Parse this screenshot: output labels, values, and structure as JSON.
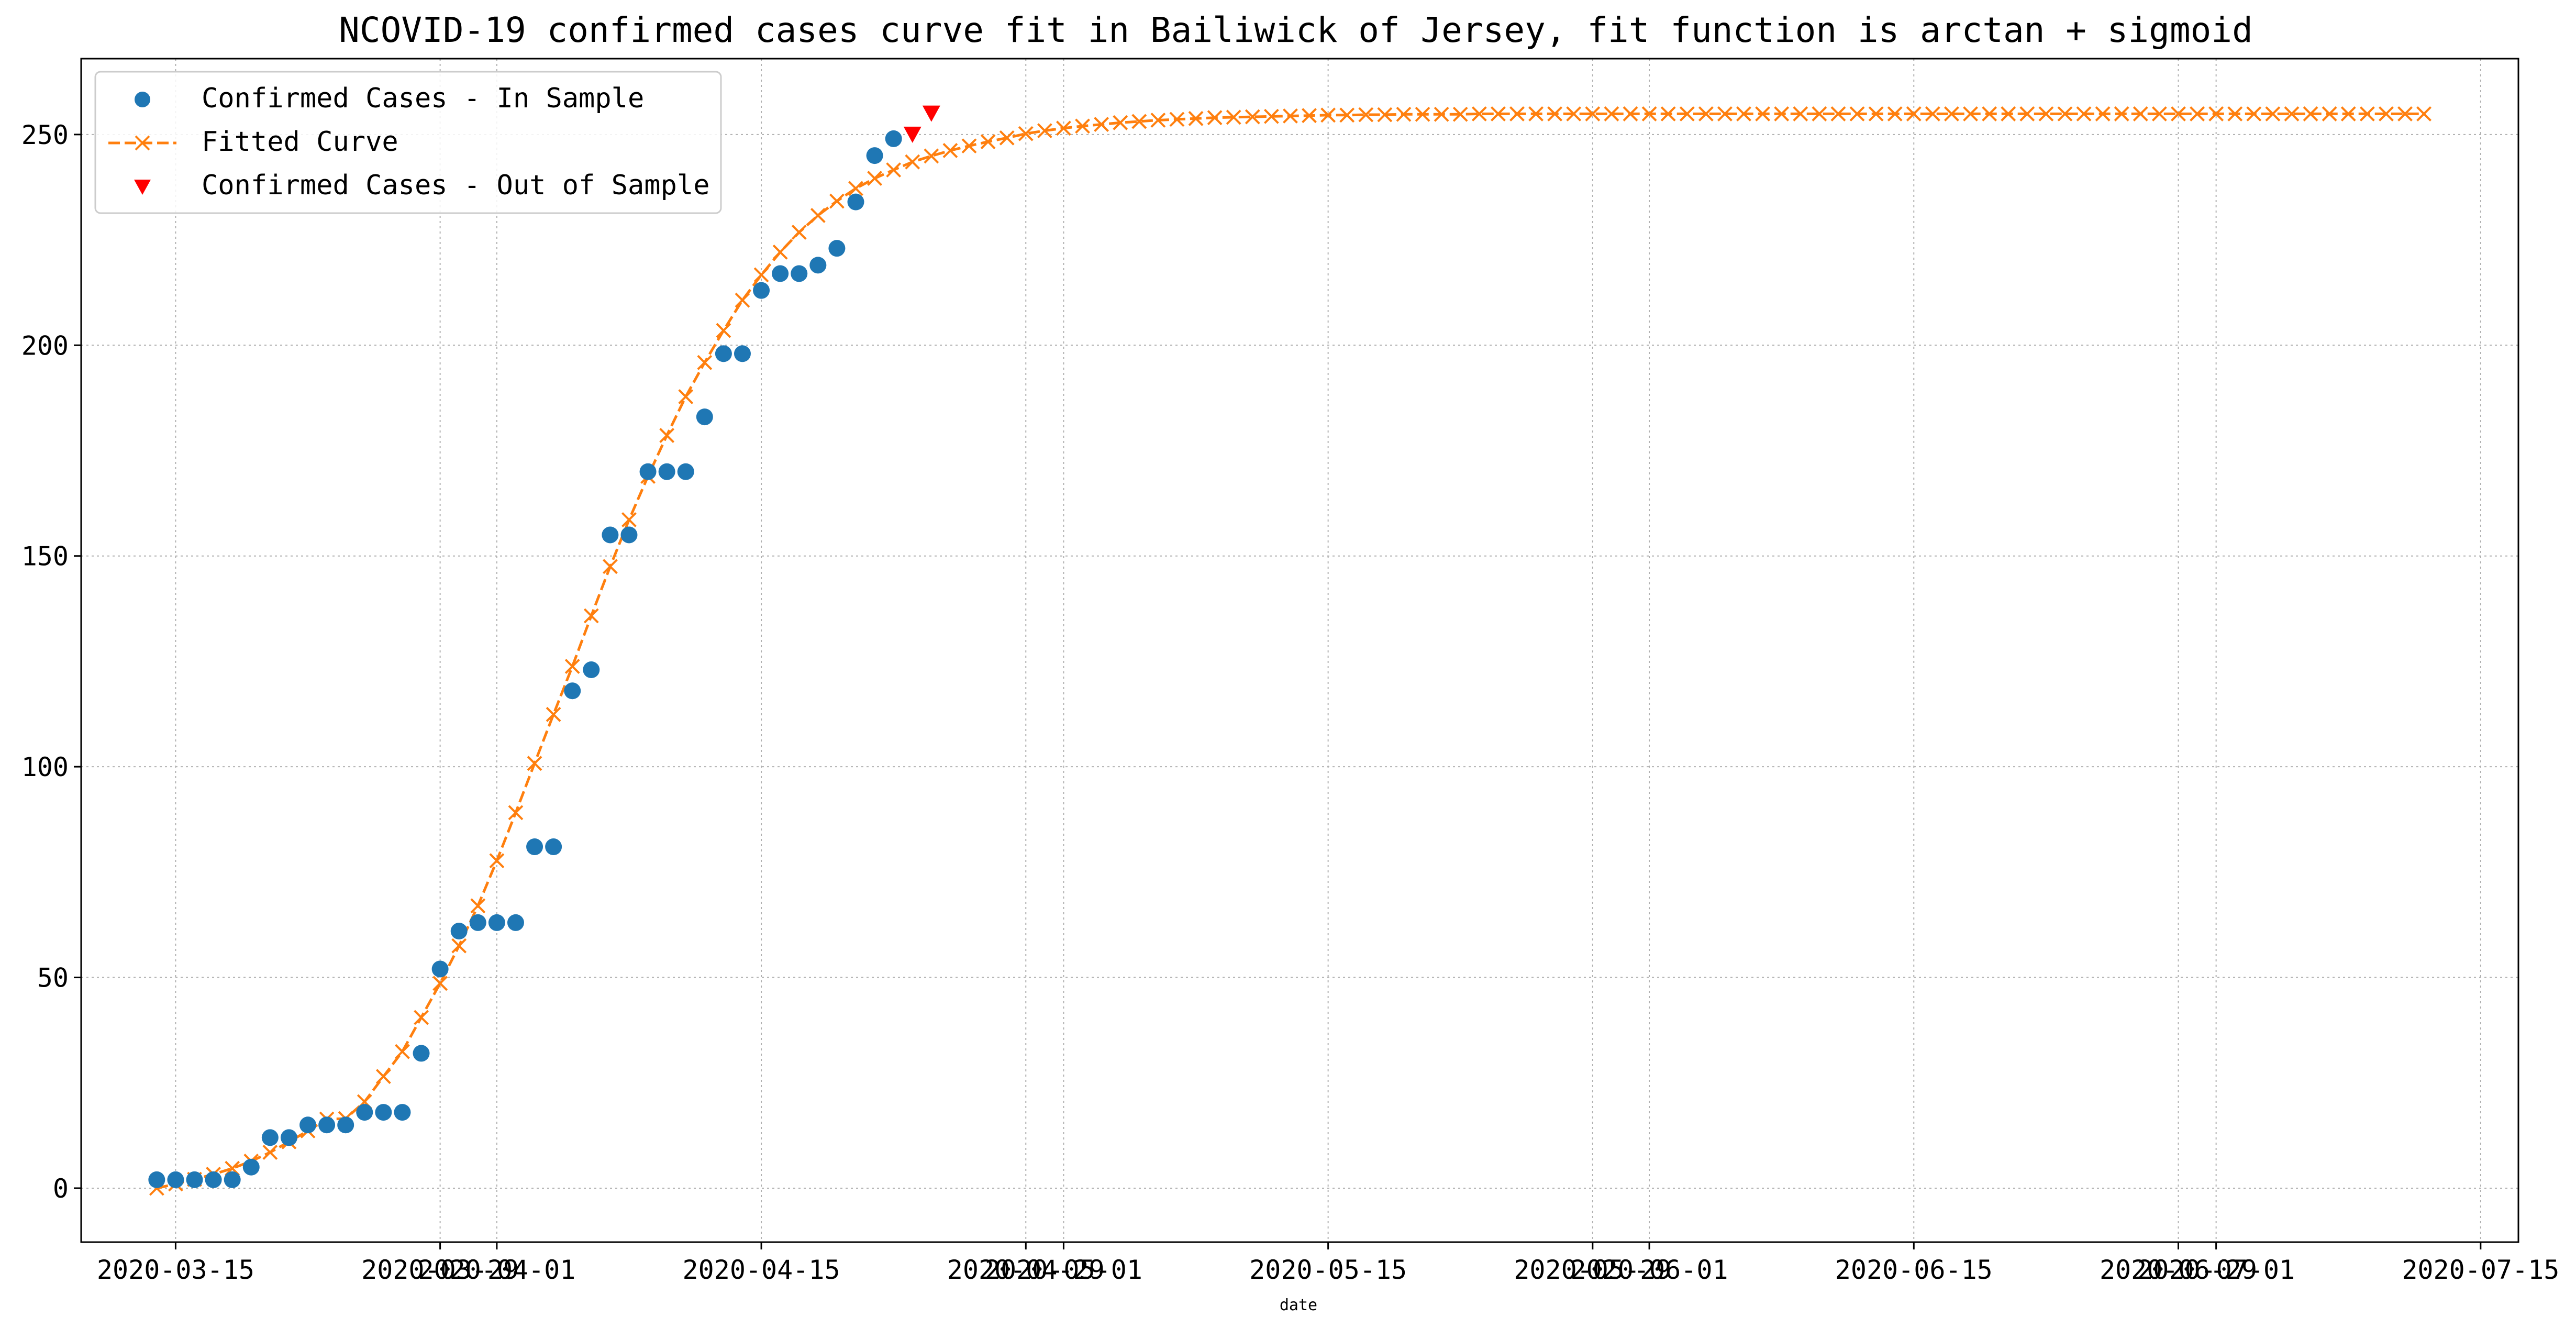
{
  "chart_data": {
    "type": "line",
    "title": "NCOVID-19 confirmed cases curve fit in Bailiwick of Jersey, fit function is arctan + sigmoid",
    "xlabel": "date",
    "ylabel": "",
    "x_range": [
      "2020-03-10",
      "2020-07-17"
    ],
    "ylim": [
      -12.8,
      268
    ],
    "grid": true,
    "legend_position": "top-left",
    "x_ticks": [
      "2020-03-15",
      "2020-03-29",
      "2020-04-01",
      "2020-04-15",
      "2020-04-29",
      "2020-05-01",
      "2020-05-15",
      "2020-05-29",
      "2020-06-01",
      "2020-06-15",
      "2020-06-29",
      "2020-07-01",
      "2020-07-15"
    ],
    "x_tick_labels": [
      "2020-03-15",
      "2020-03-29",
      "2020-04-01",
      "2020-04-15",
      "2020-04-29",
      "2020-05-01",
      "2020-05-15",
      "2020-05-29",
      "2020-06-01",
      "2020-06-15",
      "2020-06-29",
      "2020-07-01",
      "2020-07-15"
    ],
    "y_ticks": [
      0,
      50,
      100,
      150,
      200,
      250
    ],
    "y_tick_labels": [
      "0",
      "50",
      "100",
      "150",
      "200",
      "250"
    ],
    "colors": {
      "in_sample": "#1f77b4",
      "fitted": "#ff7f0e",
      "out_of_sample": "#ff0000",
      "grid": "#b0b0b0"
    },
    "series": [
      {
        "name": "Confirmed Cases - In Sample",
        "marker": "circle",
        "x": [
          "2020-03-14",
          "2020-03-15",
          "2020-03-16",
          "2020-03-17",
          "2020-03-18",
          "2020-03-19",
          "2020-03-20",
          "2020-03-21",
          "2020-03-22",
          "2020-03-23",
          "2020-03-24",
          "2020-03-25",
          "2020-03-26",
          "2020-03-27",
          "2020-03-28",
          "2020-03-29",
          "2020-03-30",
          "2020-03-31",
          "2020-04-01",
          "2020-04-02",
          "2020-04-03",
          "2020-04-04",
          "2020-04-05",
          "2020-04-06",
          "2020-04-07",
          "2020-04-08",
          "2020-04-09",
          "2020-04-10",
          "2020-04-11",
          "2020-04-12",
          "2020-04-13",
          "2020-04-14",
          "2020-04-15",
          "2020-04-16",
          "2020-04-17",
          "2020-04-18",
          "2020-04-19",
          "2020-04-20",
          "2020-04-21",
          "2020-04-22"
        ],
        "values": [
          2,
          2,
          2,
          2,
          2,
          5,
          12,
          12,
          15,
          15,
          15,
          18,
          18,
          18,
          32,
          52,
          61,
          63,
          63,
          63,
          81,
          81,
          118,
          123,
          155,
          155,
          170,
          170,
          170,
          183,
          198,
          198,
          213,
          217,
          217,
          219,
          223,
          234,
          245,
          249
        ]
      },
      {
        "name": "Fitted Curve",
        "marker": "x",
        "line": "dashed",
        "x_start": "2020-03-14",
        "x_step_days": 1,
        "values": [
          0.0,
          1.0,
          2.1,
          3.3,
          4.7,
          6.4,
          8.5,
          11.0,
          13.6,
          16.4,
          16.5,
          20.5,
          26.5,
          32.4,
          40.5,
          48.6,
          57.5,
          67.0,
          77.7,
          89.1,
          100.8,
          112.4,
          123.8,
          135.8,
          147.5,
          158.6,
          168.9,
          178.6,
          187.8,
          195.9,
          203.5,
          210.7,
          216.7,
          222.1,
          226.8,
          230.8,
          234.2,
          237.2,
          239.6,
          241.6,
          243.5,
          244.9,
          246.2,
          247.3,
          248.3,
          249.2,
          250.2,
          250.9,
          251.5,
          252.0,
          252.4,
          252.8,
          253.1,
          253.4,
          253.6,
          253.8,
          254.0,
          254.1,
          254.2,
          254.3,
          254.4,
          254.5,
          254.6,
          254.6,
          254.7,
          254.7,
          254.8,
          254.8,
          254.8,
          254.8,
          254.9,
          254.9,
          254.9,
          254.9,
          254.9,
          254.9,
          254.9,
          254.9,
          254.9,
          254.9,
          254.9,
          254.9,
          254.9,
          254.9,
          254.9,
          254.9,
          254.9,
          254.9,
          254.9,
          254.9,
          254.9,
          254.9,
          254.9,
          254.9,
          254.9,
          254.9,
          254.9,
          254.9,
          254.9,
          254.9,
          254.9,
          254.9,
          254.9,
          254.9,
          254.9,
          254.9,
          254.9,
          254.9,
          254.9,
          254.9,
          254.9,
          254.9,
          254.9,
          254.9,
          254.9,
          254.9,
          254.9,
          254.9,
          254.9,
          254.9,
          254.9
        ]
      },
      {
        "name": "Confirmed Cases - Out of Sample",
        "marker": "triangle-down",
        "x": [
          "2020-04-23",
          "2020-04-24"
        ],
        "values": [
          250,
          255
        ]
      }
    ]
  }
}
